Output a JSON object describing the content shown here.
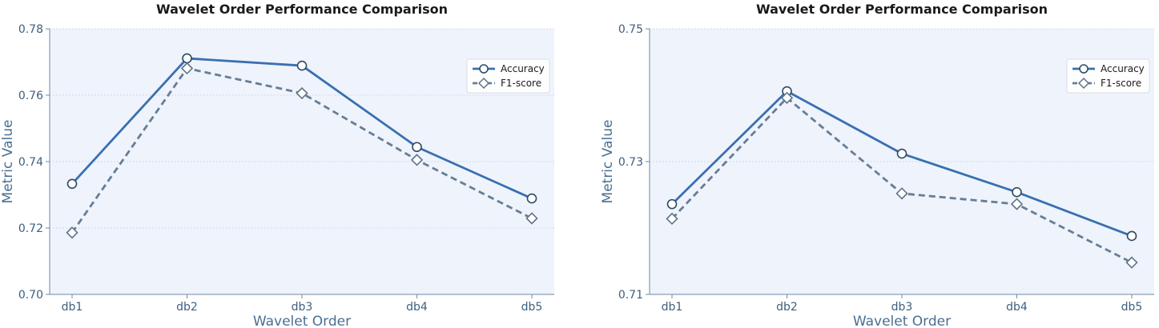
{
  "chart_data": [
    {
      "type": "line",
      "title": "Wavelet Order Performance Comparison",
      "xlabel": "Wavelet Order",
      "ylabel": "Metric Value",
      "categories": [
        "db1",
        "db2",
        "db3",
        "db4",
        "db5"
      ],
      "ylim": [
        0.7,
        0.78
      ],
      "yticks": [
        "0.70",
        "0.72",
        "0.74",
        "0.76",
        "0.78"
      ],
      "ytick_values": [
        0.7,
        0.72,
        0.74,
        0.76,
        0.78
      ],
      "grid": true,
      "legend": "upper-right",
      "series": [
        {
          "name": "Accuracy",
          "values": [
            0.7333,
            0.7711,
            0.7689,
            0.7444,
            0.7289
          ],
          "color": "#3a6fb0",
          "dash": "solid",
          "marker": "circle"
        },
        {
          "name": "F1-score",
          "values": [
            0.7186,
            0.7681,
            0.7606,
            0.7405,
            0.7229
          ],
          "color": "#677d94",
          "dash": "dashed",
          "marker": "diamond"
        }
      ]
    },
    {
      "type": "line",
      "title": "Wavelet Order Performance Comparison",
      "xlabel": "Wavelet Order",
      "ylabel": "Metric Value",
      "categories": [
        "db1",
        "db2",
        "db3",
        "db4",
        "db5"
      ],
      "ylim": [
        0.71,
        0.75
      ],
      "yticks": [
        "0.71",
        "0.73",
        "0.75"
      ],
      "ytick_values": [
        0.71,
        0.73,
        0.75
      ],
      "grid": true,
      "legend": "upper-right",
      "series": [
        {
          "name": "Accuracy",
          "values": [
            0.7236,
            0.7406,
            0.7312,
            0.7254,
            0.7188
          ],
          "color": "#3a6fb0",
          "dash": "solid",
          "marker": "circle"
        },
        {
          "name": "F1-score",
          "values": [
            0.7214,
            0.7396,
            0.7252,
            0.7236,
            0.7148
          ],
          "color": "#677d94",
          "dash": "dashed",
          "marker": "diamond"
        }
      ]
    }
  ]
}
